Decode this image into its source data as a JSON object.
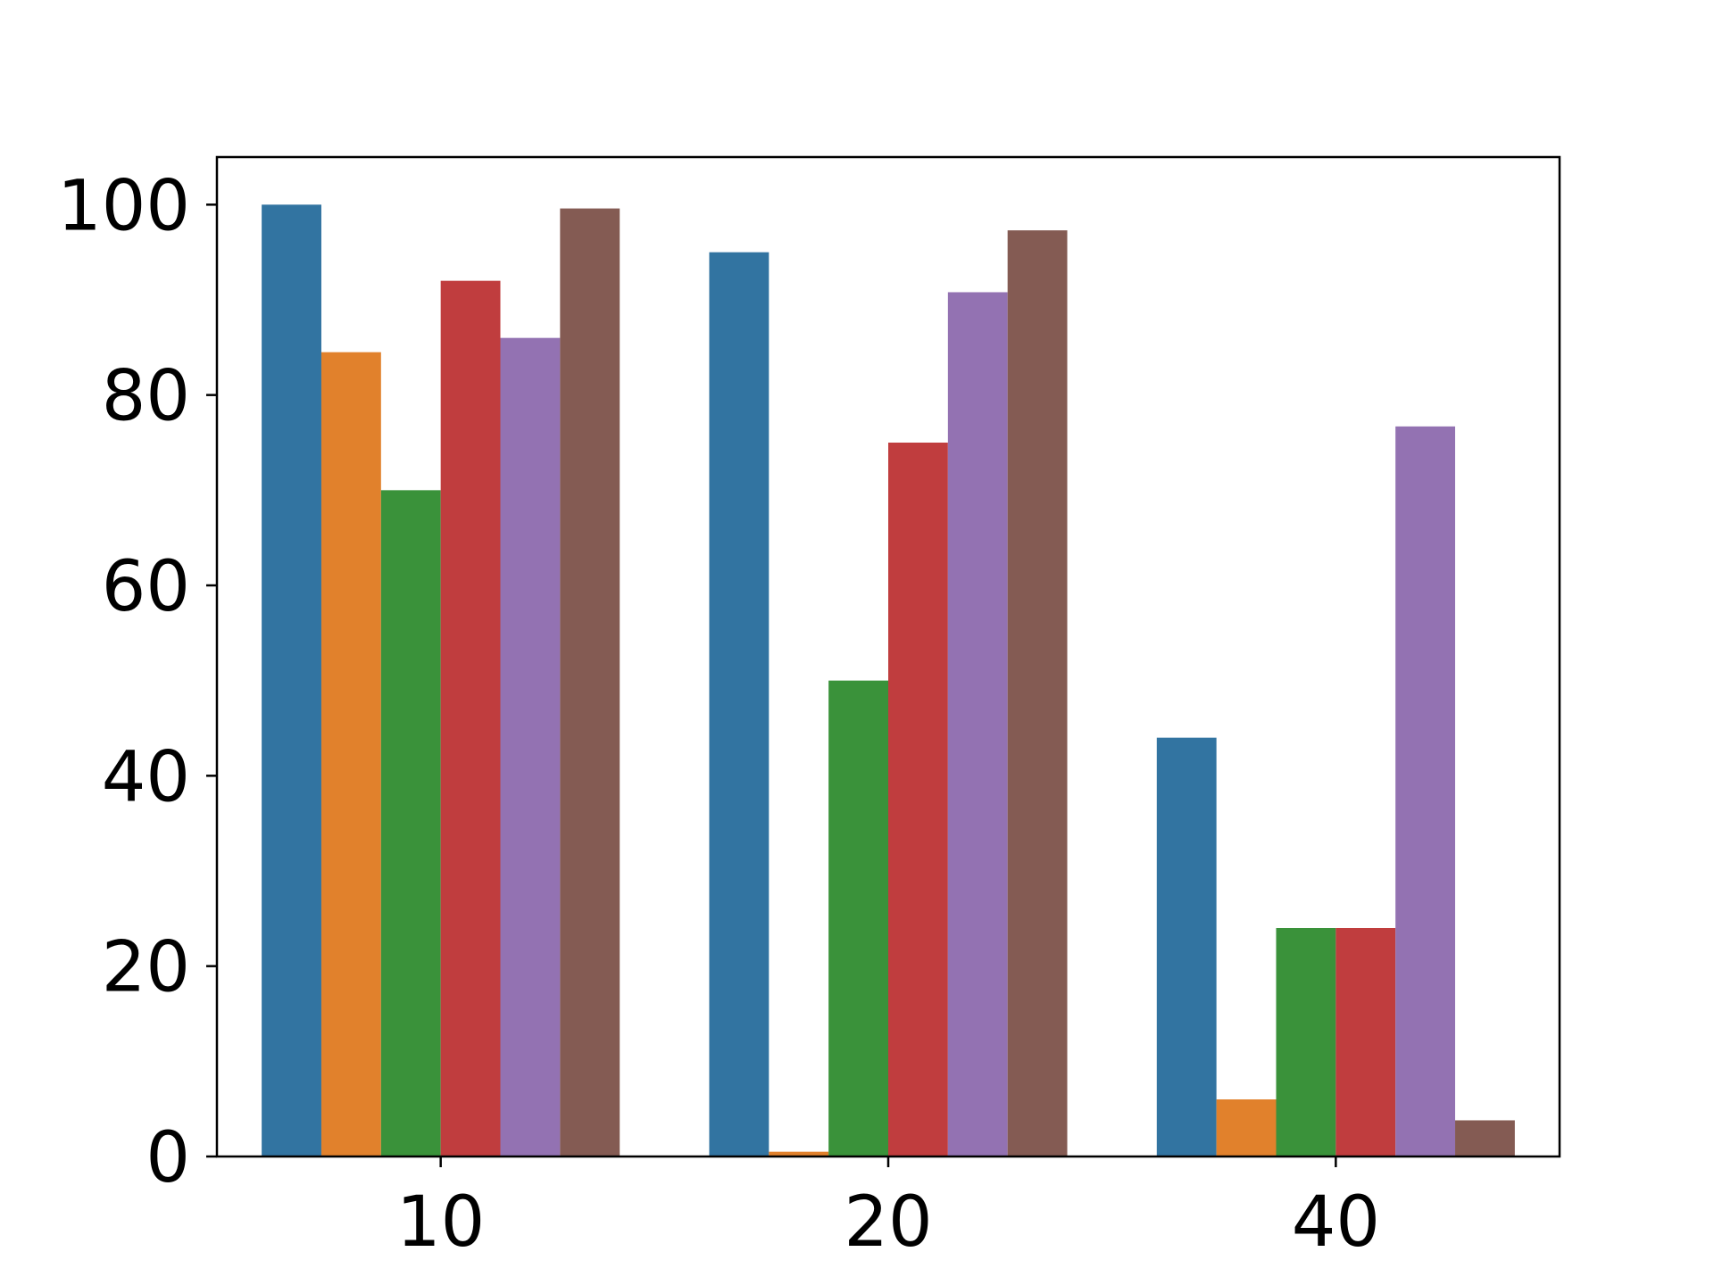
{
  "chart_data": {
    "type": "bar",
    "title": "",
    "xlabel": "",
    "ylabel": "",
    "categories": [
      "10",
      "20",
      "40"
    ],
    "ylim": [
      0,
      105
    ],
    "yticks": [
      0,
      20,
      40,
      60,
      80,
      100
    ],
    "grid": false,
    "legend": "none",
    "series": [
      {
        "color": "#3274a1",
        "values": [
          100.0,
          95.0,
          44.0
        ]
      },
      {
        "color": "#e1812c",
        "values": [
          84.5,
          0.5,
          6.0
        ]
      },
      {
        "color": "#3a923a",
        "values": [
          70.0,
          50.0,
          24.0
        ]
      },
      {
        "color": "#c03d3e",
        "values": [
          92.0,
          75.0,
          24.0
        ]
      },
      {
        "color": "#9372b2",
        "values": [
          86.0,
          90.8,
          76.7
        ]
      },
      {
        "color": "#845b53",
        "values": [
          99.6,
          97.3,
          3.8
        ]
      }
    ]
  }
}
